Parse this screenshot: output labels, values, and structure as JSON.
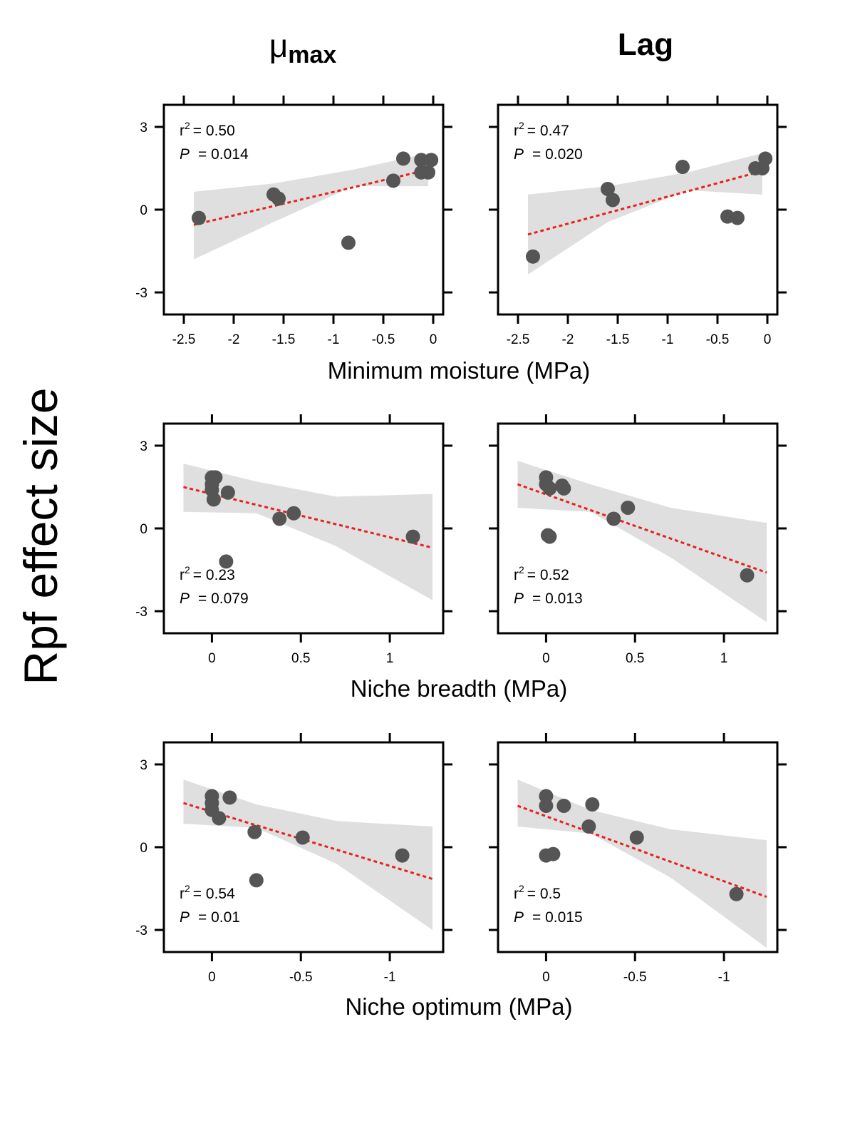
{
  "figure": {
    "ylabel": "Rpf effect size",
    "col_titles": [
      {
        "main": "μ",
        "sub": "max"
      },
      {
        "main": "Lag",
        "sub": ""
      }
    ],
    "row_xlabels": [
      "Minimum moisture (MPa)",
      "Niche breadth (MPa)",
      "Niche optimum (MPa)"
    ]
  },
  "chart_data": [
    {
      "type": "scatter",
      "row": 0,
      "col": 0,
      "x_reversed": false,
      "xlim": [
        -2.7,
        0.1
      ],
      "ylim": [
        -3.8,
        3.8
      ],
      "xticks": [
        -2.5,
        -2,
        -1.5,
        -1,
        -0.5,
        0
      ],
      "xticklabels": [
        "-2.5",
        "-2",
        "-1.5",
        "-1",
        "-0.5",
        "0"
      ],
      "yticks": [
        3,
        0,
        -3
      ],
      "yticklabels": [
        "3",
        "0",
        "-3"
      ],
      "points": [
        [
          -2.35,
          -0.3
        ],
        [
          -1.6,
          0.55
        ],
        [
          -1.55,
          0.4
        ],
        [
          -0.85,
          -1.2
        ],
        [
          -0.4,
          1.05
        ],
        [
          -0.3,
          1.85
        ],
        [
          -0.12,
          1.35
        ],
        [
          -0.12,
          1.8
        ],
        [
          -0.05,
          1.35
        ],
        [
          -0.02,
          1.8
        ]
      ],
      "fit": {
        "x": [
          -2.4,
          -0.05
        ],
        "y": [
          -0.55,
          1.45
        ]
      },
      "ci": {
        "x": [
          -2.4,
          -1.6,
          -0.8,
          -0.05
        ],
        "upper": [
          0.65,
          0.95,
          1.45,
          2.05
        ],
        "lower": [
          -1.8,
          -0.45,
          0.85,
          0.85
        ]
      },
      "stats": {
        "r2_label": "r",
        "r2_exp": "2",
        "r2_value": "= 0.50",
        "p_label": "P",
        "p_value": "= 0.014"
      },
      "stats_pos": "top-left"
    },
    {
      "type": "scatter",
      "row": 0,
      "col": 1,
      "x_reversed": false,
      "xlim": [
        -2.7,
        0.1
      ],
      "ylim": [
        -3.8,
        3.8
      ],
      "xticks": [
        -2.5,
        -2,
        -1.5,
        -1,
        -0.5,
        0
      ],
      "xticklabels": [
        "-2.5",
        "-2",
        "-1.5",
        "-1",
        "-0.5",
        "0"
      ],
      "yticks": [
        3,
        0,
        -3
      ],
      "yticklabels": [
        "",
        "",
        ""
      ],
      "points": [
        [
          -2.35,
          -1.7
        ],
        [
          -1.6,
          0.75
        ],
        [
          -1.55,
          0.35
        ],
        [
          -0.85,
          1.55
        ],
        [
          -0.4,
          -0.25
        ],
        [
          -0.3,
          -0.3
        ],
        [
          -0.12,
          1.5
        ],
        [
          -0.05,
          1.5
        ],
        [
          -0.02,
          1.85
        ]
      ],
      "fit": {
        "x": [
          -2.4,
          -0.05
        ],
        "y": [
          -0.9,
          1.4
        ]
      },
      "ci": {
        "x": [
          -2.4,
          -1.6,
          -0.8,
          -0.05
        ],
        "upper": [
          0.55,
          0.85,
          1.35,
          2.05
        ],
        "lower": [
          -2.35,
          -0.45,
          0.7,
          0.55
        ]
      },
      "stats": {
        "r2_label": "r",
        "r2_exp": "2",
        "r2_value": "= 0.47",
        "p_label": "P",
        "p_value": "= 0.020"
      },
      "stats_pos": "top-left"
    },
    {
      "type": "scatter",
      "row": 1,
      "col": 0,
      "x_reversed": false,
      "xlim": [
        -0.27,
        1.3
      ],
      "ylim": [
        -3.8,
        3.8
      ],
      "xticks": [
        0,
        0.5,
        1
      ],
      "xticklabels": [
        "0",
        "0.5",
        "1"
      ],
      "yticks": [
        3,
        0,
        -3
      ],
      "yticklabels": [
        "3",
        "0",
        "-3"
      ],
      "points": [
        [
          0,
          1.85
        ],
        [
          0.02,
          1.85
        ],
        [
          0,
          1.6
        ],
        [
          0,
          1.4
        ],
        [
          0.01,
          1.05
        ],
        [
          0.09,
          1.3
        ],
        [
          0.08,
          -1.2
        ],
        [
          0.38,
          0.35
        ],
        [
          0.46,
          0.55
        ],
        [
          1.13,
          -0.3
        ]
      ],
      "fit": {
        "x": [
          -0.16,
          1.24
        ],
        "y": [
          1.5,
          -0.7
        ]
      },
      "ci": {
        "x": [
          -0.16,
          0.25,
          0.7,
          1.24
        ],
        "upper": [
          2.35,
          1.7,
          1.15,
          1.25
        ],
        "lower": [
          0.6,
          0.55,
          -0.65,
          -2.6
        ]
      },
      "stats": {
        "r2_label": "r",
        "r2_exp": "2",
        "r2_value": "= 0.23",
        "p_label": "P",
        "p_value": "= 0.079"
      },
      "stats_pos": "bottom-left"
    },
    {
      "type": "scatter",
      "row": 1,
      "col": 1,
      "x_reversed": false,
      "xlim": [
        -0.27,
        1.3
      ],
      "ylim": [
        -3.8,
        3.8
      ],
      "xticks": [
        0,
        0.5,
        1
      ],
      "xticklabels": [
        "0",
        "0.5",
        "1"
      ],
      "yticks": [
        3,
        0,
        -3
      ],
      "yticklabels": [
        "",
        "",
        ""
      ],
      "points": [
        [
          0,
          1.85
        ],
        [
          0,
          1.6
        ],
        [
          0.02,
          1.45
        ],
        [
          0.09,
          1.55
        ],
        [
          0.1,
          1.45
        ],
        [
          0.01,
          -0.25
        ],
        [
          0.02,
          -0.3
        ],
        [
          0.38,
          0.35
        ],
        [
          0.46,
          0.75
        ],
        [
          1.13,
          -1.7
        ]
      ],
      "fit": {
        "x": [
          -0.16,
          1.24
        ],
        "y": [
          1.6,
          -1.6
        ]
      },
      "ci": {
        "x": [
          -0.16,
          0.25,
          0.7,
          1.24
        ],
        "upper": [
          2.45,
          1.6,
          0.75,
          0.2
        ],
        "lower": [
          0.75,
          0.6,
          -1.05,
          -3.4
        ]
      },
      "stats": {
        "r2_label": "r",
        "r2_exp": "2",
        "r2_value": "= 0.52",
        "p_label": "P",
        "p_value": "= 0.013"
      },
      "stats_pos": "bottom-left"
    },
    {
      "type": "scatter",
      "row": 2,
      "col": 0,
      "x_reversed": true,
      "xlim": [
        0.27,
        -1.3
      ],
      "ylim": [
        -3.8,
        3.8
      ],
      "xticks": [
        0,
        -0.5,
        -1
      ],
      "xticklabels": [
        "0",
        "-0.5",
        "-1"
      ],
      "yticks": [
        3,
        0,
        -3
      ],
      "yticklabels": [
        "3",
        "0",
        "-3"
      ],
      "points": [
        [
          0,
          1.85
        ],
        [
          0,
          1.6
        ],
        [
          0,
          1.35
        ],
        [
          -0.04,
          1.05
        ],
        [
          -0.1,
          1.8
        ],
        [
          -0.24,
          0.55
        ],
        [
          -0.25,
          -1.2
        ],
        [
          -0.51,
          0.35
        ],
        [
          -1.07,
          -0.3
        ]
      ],
      "fit": {
        "x": [
          0.16,
          -1.24
        ],
        "y": [
          1.6,
          -1.15
        ]
      },
      "ci": {
        "x": [
          0.16,
          -0.25,
          -0.7,
          -1.24
        ],
        "upper": [
          2.45,
          1.55,
          0.95,
          0.75
        ],
        "lower": [
          0.85,
          0.7,
          -0.6,
          -3.0
        ]
      },
      "stats": {
        "r2_label": "r",
        "r2_exp": "2",
        "r2_value": "= 0.54",
        "p_label": "P",
        "p_value": "= 0.01"
      },
      "stats_pos": "bottom-left"
    },
    {
      "type": "scatter",
      "row": 2,
      "col": 1,
      "x_reversed": true,
      "xlim": [
        0.27,
        -1.3
      ],
      "ylim": [
        -3.8,
        3.8
      ],
      "xticks": [
        0,
        -0.5,
        -1
      ],
      "xticklabels": [
        "0",
        "-0.5",
        "-1"
      ],
      "yticks": [
        3,
        0,
        -3
      ],
      "yticklabels": [
        "",
        "",
        ""
      ],
      "points": [
        [
          0,
          1.85
        ],
        [
          0,
          1.5
        ],
        [
          -0.1,
          1.5
        ],
        [
          -0.26,
          1.55
        ],
        [
          -0.24,
          0.75
        ],
        [
          0,
          -0.3
        ],
        [
          -0.04,
          -0.25
        ],
        [
          -0.51,
          0.35
        ],
        [
          -1.07,
          -1.7
        ]
      ],
      "fit": {
        "x": [
          0.16,
          -1.24
        ],
        "y": [
          1.5,
          -1.8
        ]
      },
      "ci": {
        "x": [
          0.16,
          -0.25,
          -0.7,
          -1.24
        ],
        "upper": [
          2.45,
          1.35,
          0.65,
          0.25
        ],
        "lower": [
          0.75,
          0.5,
          -1.1,
          -3.65
        ]
      },
      "stats": {
        "r2_label": "r",
        "r2_exp": "2",
        "r2_value": "= 0.5",
        "p_label": "P",
        "p_value": "= 0.015"
      },
      "stats_pos": "bottom-left"
    }
  ],
  "colors": {
    "point": "#555555",
    "fit_line": "#e8211c",
    "ci_band": "#dfdfdf",
    "axis": "#000000"
  }
}
